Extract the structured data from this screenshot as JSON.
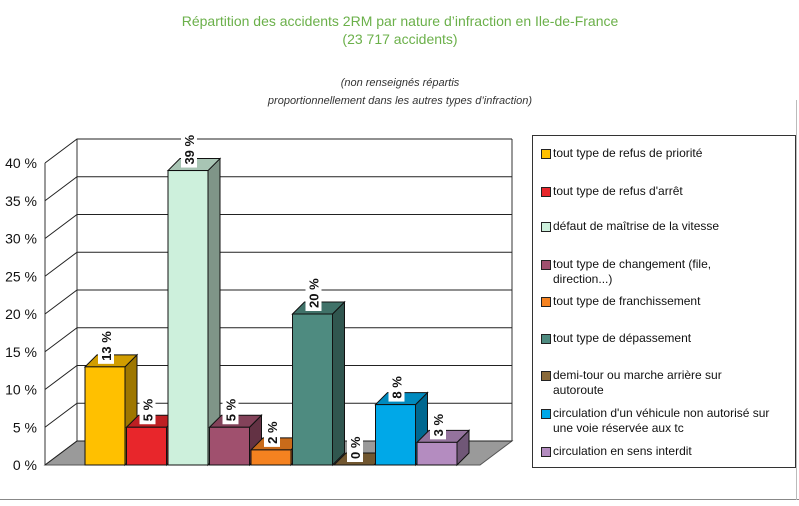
{
  "title_lines": [
    "Répartition des accidents 2RM par nature d’infraction en Ile-de-France",
    "(23 717 accidents)"
  ],
  "subtitle_lines": [
    "(non renseignés répartis",
    "proportionnellement dans les autres types d’infraction)"
  ],
  "chart_data": {
    "type": "bar",
    "title": "Répartition des accidents 2RM par nature d’infraction en Ile-de-France",
    "xlabel": "",
    "ylabel": "",
    "ylim": [
      0,
      40
    ],
    "yticks": [
      "0 %",
      "5 %",
      "10 %",
      "15 %",
      "20 %",
      "25 %",
      "30 %",
      "35 %",
      "40 %"
    ],
    "grid": true,
    "legend_position": "right",
    "categories": [
      "tout type de refus de priorité",
      "tout type de refus d'arrêt",
      "défaut de maîtrise de la vitesse",
      "tout type de changement (file, direction...)",
      "tout type de franchissement",
      "tout type de dépassement",
      "demi-tour ou marche arrière sur autoroute",
      "circulation d'un véhicule non autorisé sur une voie réservée aux tc",
      "circulation en sens interdit"
    ],
    "values": [
      13,
      5,
      39,
      5,
      2,
      20,
      0,
      8,
      3
    ],
    "data_labels": [
      "13 %",
      "5 %",
      "39 %",
      "5 %",
      "2 %",
      "20 %",
      "0 %",
      "8 %",
      "3 %"
    ],
    "colors": [
      "#ffc000",
      "#e8262b",
      "#cdf0dc",
      "#a0506e",
      "#f58220",
      "#4e8b80",
      "#8a6a3a",
      "#00a8e8",
      "#b48cc0"
    ]
  },
  "legend": [
    {
      "lines": [
        "tout type de refus de priorité"
      ]
    },
    {
      "lines": [
        "tout type de refus d'arrêt"
      ]
    },
    {
      "lines": [
        "défaut de maîtrise de la vitesse"
      ]
    },
    {
      "lines": [
        "tout type de changement (file,",
        "direction...)"
      ]
    },
    {
      "lines": [
        "tout type de franchissement"
      ]
    },
    {
      "lines": [
        "tout type de dépassement"
      ]
    },
    {
      "lines": [
        "demi-tour ou marche arrière sur",
        "autoroute"
      ]
    },
    {
      "lines": [
        "circulation d'un véhicule non autorisé sur",
        "une voie réservée aux tc"
      ]
    },
    {
      "lines": [
        "circulation en sens interdit"
      ]
    }
  ]
}
